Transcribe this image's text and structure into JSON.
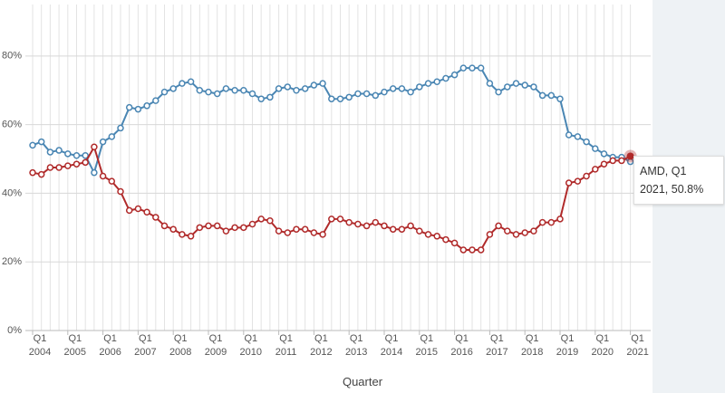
{
  "chart_data": {
    "type": "line",
    "x_label": "Quarter",
    "categories": [
      "Q1 2004",
      null,
      null,
      null,
      "Q1 2005",
      null,
      null,
      null,
      "Q1 2006",
      null,
      null,
      null,
      "Q1 2007",
      null,
      null,
      null,
      "Q1 2008",
      null,
      null,
      null,
      "Q1 2009",
      null,
      null,
      null,
      "Q1 2010",
      null,
      null,
      null,
      "Q1 2011",
      null,
      null,
      null,
      "Q1 2012",
      null,
      null,
      null,
      "Q1 2013",
      null,
      null,
      null,
      "Q1 2014",
      null,
      null,
      null,
      "Q1 2015",
      null,
      null,
      null,
      "Q1 2016",
      null,
      null,
      null,
      "Q1 2017",
      null,
      null,
      null,
      "Q1 2018",
      null,
      null,
      null,
      "Q1 2019",
      null,
      null,
      null,
      "Q1 2020",
      null,
      null,
      null,
      "Q1 2021"
    ],
    "series": [
      {
        "color": "#4a86b3",
        "values": [
          54,
          55,
          52,
          52.5,
          51.5,
          51,
          51,
          46,
          55,
          56.5,
          59,
          65,
          64.5,
          65.5,
          67,
          69.5,
          70.5,
          72,
          72.5,
          70,
          69.5,
          69,
          70.5,
          70,
          70,
          69,
          67.5,
          68,
          70.5,
          71,
          70,
          70.5,
          71.5,
          72,
          67.5,
          67.5,
          68,
          69,
          69,
          68.5,
          69.5,
          70.5,
          70.5,
          69.5,
          71,
          72,
          72.5,
          73.5,
          74.5,
          76.5,
          76.5,
          76.5,
          72,
          69.5,
          71,
          72,
          71.5,
          71,
          68.5,
          68.5,
          67.5,
          57,
          56.5,
          55,
          53,
          51.5,
          50.5,
          50.5,
          49.2
        ]
      },
      {
        "name": "AMD",
        "color": "#b02a2a",
        "values": [
          46,
          45.5,
          47.5,
          47.5,
          48,
          48.5,
          49,
          53.5,
          45,
          43.5,
          40.5,
          35,
          35.5,
          34.5,
          33,
          30.5,
          29.5,
          28,
          27.5,
          30,
          30.5,
          30.5,
          29,
          30,
          30,
          31,
          32.5,
          32,
          29,
          28.5,
          29.5,
          29.5,
          28.5,
          28,
          32.5,
          32.5,
          31.5,
          31,
          30.5,
          31.5,
          30.5,
          29.5,
          29.5,
          30.5,
          29,
          28,
          27.5,
          26.5,
          25.5,
          23.5,
          23.5,
          23.5,
          28,
          30.5,
          29,
          28,
          28.5,
          29,
          31.5,
          31.5,
          32.5,
          43,
          43.5,
          45,
          47,
          48.5,
          49.5,
          49.5,
          50.8
        ]
      }
    ],
    "ylim": [
      0,
      95
    ],
    "yticks": [
      {
        "value": 0,
        "label": "0%"
      },
      {
        "value": 20,
        "label": "20%"
      },
      {
        "value": 40,
        "label": "40%"
      },
      {
        "value": 60,
        "label": "60%"
      },
      {
        "value": 80,
        "label": "80%"
      }
    ],
    "grid": true,
    "tooltip": {
      "text": "AMD, Q1 2021, 50.8%",
      "series": 1,
      "index": 68
    }
  }
}
